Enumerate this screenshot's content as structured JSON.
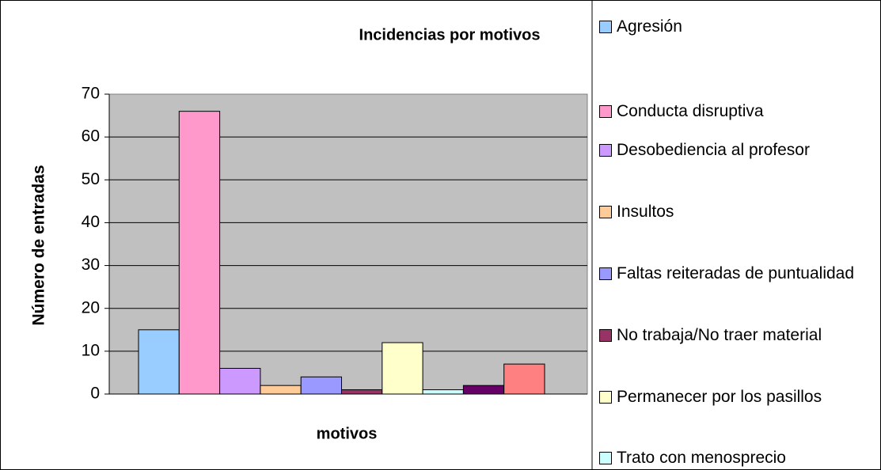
{
  "chart_data": {
    "type": "bar",
    "title": "Incidencias por motivos",
    "x_label": "motivos",
    "y_label": "Número de entradas",
    "ylim": [
      0,
      70
    ],
    "yticks": [
      0,
      10,
      20,
      30,
      40,
      50,
      60,
      70
    ],
    "grid": true,
    "series": [
      {
        "name": "Agresión",
        "color": "#99ccff",
        "values": [
          15
        ]
      },
      {
        "name": "Conducta disruptiva",
        "color": "#ff99cc",
        "values": [
          66
        ]
      },
      {
        "name": "Desobediencia al profesor",
        "color": "#cc99ff",
        "values": [
          6
        ]
      },
      {
        "name": "Insultos",
        "color": "#ffcc99",
        "values": [
          2
        ]
      },
      {
        "name": "Faltas reiteradas de puntualidad",
        "color": "#9999ff",
        "values": [
          4
        ]
      },
      {
        "name": "No trabaja/No traer material",
        "color": "#993366",
        "values": [
          1
        ]
      },
      {
        "name": "Permanecer por los pasillos",
        "color": "#ffffcc",
        "values": [
          12
        ]
      },
      {
        "name": "Trato con menosprecio",
        "color": "#ccffff",
        "values": [
          1
        ]
      },
      {
        "color": "#660066",
        "values": [
          2
        ]
      },
      {
        "color": "#ff8080",
        "values": [
          7
        ]
      }
    ]
  }
}
